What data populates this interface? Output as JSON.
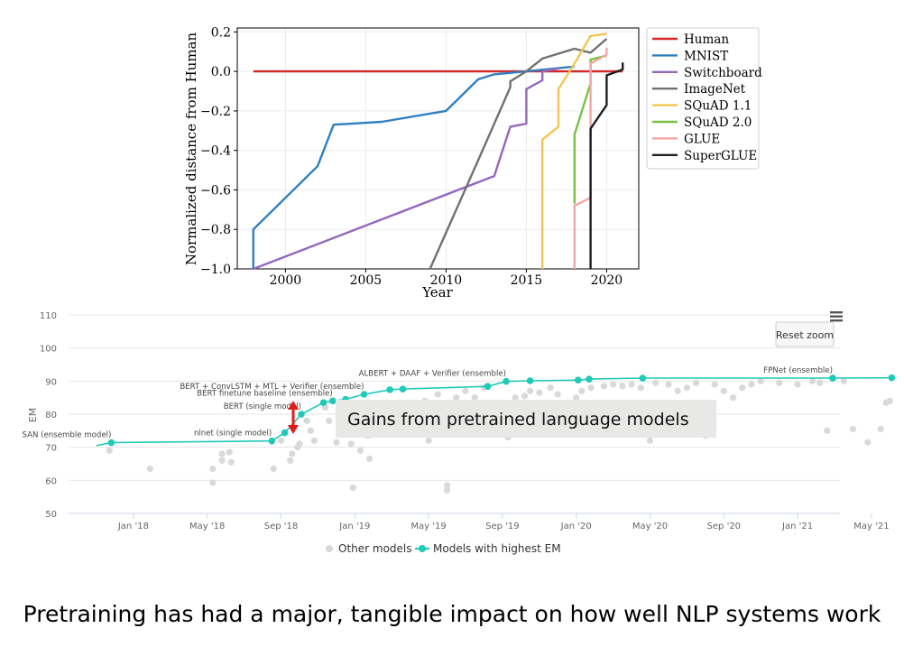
{
  "caption": "Pretraining has had a major, tangible impact on how well NLP systems work",
  "chart_data": [
    {
      "type": "line",
      "xlabel": "Year",
      "ylabel": "Normalized distance from Human",
      "xlim": [
        1997,
        2022
      ],
      "ylim": [
        -1.0,
        0.22
      ],
      "xticks": [
        2000,
        2005,
        2010,
        2015,
        2020
      ],
      "yticks": [
        -1.0,
        -0.8,
        -0.6,
        -0.4,
        -0.2,
        0.0,
        0.2
      ],
      "ytick_labels": [
        "−1.0",
        "−0.8",
        "−0.6",
        "−0.4",
        "−0.2",
        "0.0",
        "0.2"
      ],
      "grid": true,
      "legend_position": "right",
      "series": [
        {
          "name": "Human",
          "color": "#d62728",
          "points": [
            [
              1998,
              0.0
            ],
            [
              2021,
              0.0
            ]
          ]
        },
        {
          "name": "MNIST",
          "color": "#2f7fc1",
          "points": [
            [
              1998,
              -1.0
            ],
            [
              1998,
              -0.8
            ],
            [
              2002,
              -0.48
            ],
            [
              2003,
              -0.27
            ],
            [
              2006,
              -0.255
            ],
            [
              2010,
              -0.2
            ],
            [
              2012,
              -0.04
            ],
            [
              2013,
              -0.015
            ],
            [
              2015,
              0.0
            ],
            [
              2018,
              0.025
            ]
          ]
        },
        {
          "name": "Switchboard",
          "color": "#9467bd",
          "points": [
            [
              1998,
              -1.0
            ],
            [
              2013,
              -0.53
            ],
            [
              2014,
              -0.28
            ],
            [
              2015,
              -0.265
            ],
            [
              2015,
              -0.09
            ],
            [
              2016,
              -0.045
            ],
            [
              2016,
              0.0
            ],
            [
              2017,
              0.015
            ]
          ]
        },
        {
          "name": "ImageNet",
          "color": "#707070",
          "points": [
            [
              2009,
              -1.0
            ],
            [
              2012,
              -0.45
            ],
            [
              2014,
              -0.08
            ],
            [
              2014,
              -0.05
            ],
            [
              2015,
              0.0
            ],
            [
              2016,
              0.065
            ],
            [
              2018,
              0.115
            ],
            [
              2019,
              0.095
            ],
            [
              2020,
              0.165
            ]
          ]
        },
        {
          "name": "SQuAD 1.1",
          "color": "#f5c451",
          "points": [
            [
              2016,
              -1.0
            ],
            [
              2016,
              -0.345
            ],
            [
              2017,
              -0.28
            ],
            [
              2017,
              -0.09
            ],
            [
              2018,
              0.04
            ],
            [
              2019,
              0.18
            ],
            [
              2020,
              0.19
            ]
          ]
        },
        {
          "name": "SQuAD 2.0",
          "color": "#7ac143",
          "points": [
            [
              2018,
              -0.67
            ],
            [
              2018,
              -0.32
            ],
            [
              2019,
              -0.06
            ],
            [
              2019,
              0.06
            ],
            [
              2020,
              0.08
            ]
          ]
        },
        {
          "name": "GLUE",
          "color": "#f4a6a6",
          "points": [
            [
              2018,
              -1.0
            ],
            [
              2018,
              -0.68
            ],
            [
              2019,
              -0.64
            ],
            [
              2019,
              0.04
            ],
            [
              2020,
              0.085
            ],
            [
              2020,
              0.12
            ]
          ]
        },
        {
          "name": "SuperGLUE",
          "color": "#1f1f1f",
          "points": [
            [
              2019,
              -1.0
            ],
            [
              2019,
              -0.29
            ],
            [
              2020,
              -0.17
            ],
            [
              2020,
              -0.02
            ],
            [
              2021,
              0.01
            ],
            [
              2021,
              0.045
            ]
          ]
        }
      ]
    },
    {
      "type": "scatter",
      "ylabel": "EM",
      "ylim": [
        50,
        110
      ],
      "yticks": [
        50,
        60,
        70,
        80,
        90,
        100,
        110
      ],
      "x_unit": "months since Nov 2017",
      "xticks": [
        {
          "t": 2,
          "label": "Jan '18"
        },
        {
          "t": 6,
          "label": "May '18"
        },
        {
          "t": 10,
          "label": "Sep '18"
        },
        {
          "t": 14,
          "label": "Jan '19"
        },
        {
          "t": 18,
          "label": "May '19"
        },
        {
          "t": 22,
          "label": "Sep '19"
        },
        {
          "t": 26,
          "label": "Jan '20"
        },
        {
          "t": 30,
          "label": "May '20"
        },
        {
          "t": 34,
          "label": "Sep '20"
        },
        {
          "t": 38,
          "label": "Jan '21"
        },
        {
          "t": 42,
          "label": "May '21"
        }
      ],
      "legend": [
        "Other models",
        "Models with highest EM"
      ],
      "legend_position": "bottom-center",
      "reset_zoom_label": "Reset zoom",
      "annotation": "Gains from pretrained language models",
      "highest_em_series": {
        "name": "Models with highest EM",
        "color": "#20c9b8",
        "points": [
          [
            0,
            70.5
          ],
          [
            0.8,
            71.4
          ],
          [
            9.5,
            71.9
          ],
          [
            10.2,
            74.4
          ],
          [
            11.1,
            80.0
          ],
          [
            12.3,
            83.5
          ],
          [
            12.8,
            84.0
          ],
          [
            13.5,
            84.5
          ],
          [
            14.5,
            86.0
          ],
          [
            15.9,
            87.4
          ],
          [
            16.6,
            87.6
          ],
          [
            21.2,
            88.4
          ],
          [
            22.2,
            89.9
          ],
          [
            23.5,
            90.1
          ],
          [
            26.1,
            90.3
          ],
          [
            26.7,
            90.6
          ],
          [
            29.6,
            90.9
          ],
          [
            39.9,
            90.9
          ],
          [
            43.1,
            91.0
          ]
        ]
      },
      "labels": [
        {
          "text": "SAN (ensemble model)",
          "x": 0.8,
          "y": 71.4
        },
        {
          "text": "nlnet (single model)",
          "x": 9.5,
          "y": 71.9
        },
        {
          "text": "BERT (single model)",
          "x": 11.1,
          "y": 80.0
        },
        {
          "text": "BERT finetune baseline (ensemble)",
          "x": 12.8,
          "y": 84.0
        },
        {
          "text": "BERT + ConvLSTM + MTL + Verifier (ensemble)",
          "x": 14.5,
          "y": 86.0
        },
        {
          "text": "ALBERT + DAAF + Verifier (ensemble)",
          "x": 22.2,
          "y": 89.9
        },
        {
          "text": "FPNet (ensemble)",
          "x": 39.9,
          "y": 90.9
        }
      ],
      "other_models": {
        "name": "Other models",
        "color": "#d9d9d9",
        "points": [
          [
            0.7,
            69.0
          ],
          [
            2.9,
            63.5
          ],
          [
            6.3,
            59.3
          ],
          [
            6.3,
            63.5
          ],
          [
            6.8,
            68.0
          ],
          [
            6.8,
            66.0
          ],
          [
            7.2,
            68.5
          ],
          [
            7.3,
            65.5
          ],
          [
            9.6,
            63.5
          ],
          [
            10.0,
            72.0
          ],
          [
            10.5,
            66.0
          ],
          [
            10.6,
            68.0
          ],
          [
            10.9,
            70.0
          ],
          [
            11.0,
            71.0
          ],
          [
            11.4,
            78.0
          ],
          [
            11.6,
            75.0
          ],
          [
            11.8,
            72.0
          ],
          [
            12.4,
            82.0
          ],
          [
            12.6,
            78.0
          ],
          [
            13.0,
            71.5
          ],
          [
            13.3,
            78.5
          ],
          [
            13.6,
            75.5
          ],
          [
            13.8,
            71.0
          ],
          [
            13.9,
            57.8
          ],
          [
            14.1,
            82.0
          ],
          [
            14.3,
            69.0
          ],
          [
            14.5,
            75.0
          ],
          [
            14.7,
            73.5
          ],
          [
            14.8,
            66.5
          ],
          [
            15.0,
            80.5
          ],
          [
            15.5,
            79.0
          ],
          [
            15.9,
            82.0
          ],
          [
            16.1,
            77.0
          ],
          [
            16.3,
            80.0
          ],
          [
            17.3,
            81.0
          ],
          [
            17.8,
            84.0
          ],
          [
            18.0,
            72.0
          ],
          [
            18.5,
            86.0
          ],
          [
            18.7,
            80.0
          ],
          [
            19.0,
            58.5
          ],
          [
            19.0,
            57.0
          ],
          [
            19.5,
            85.0
          ],
          [
            20.0,
            87.0
          ],
          [
            20.5,
            85.0
          ],
          [
            21.0,
            88.0
          ],
          [
            22.3,
            73.0
          ],
          [
            22.7,
            85.0
          ],
          [
            23.2,
            85.5
          ],
          [
            23.5,
            87.0
          ],
          [
            24.0,
            86.5
          ],
          [
            24.6,
            88.0
          ],
          [
            25.0,
            86.0
          ],
          [
            26.0,
            85.0
          ],
          [
            26.3,
            87.0
          ],
          [
            26.5,
            80.0
          ],
          [
            26.8,
            88.0
          ],
          [
            27.5,
            88.5
          ],
          [
            28.0,
            89.0
          ],
          [
            28.5,
            88.5
          ],
          [
            29.0,
            89.0
          ],
          [
            29.5,
            88.0
          ],
          [
            30.0,
            72.0
          ],
          [
            30.3,
            89.5
          ],
          [
            31.0,
            89.0
          ],
          [
            31.5,
            87.0
          ],
          [
            32.0,
            88.0
          ],
          [
            32.5,
            89.5
          ],
          [
            33.0,
            73.5
          ],
          [
            33.5,
            89.0
          ],
          [
            34.0,
            87.0
          ],
          [
            34.5,
            85.0
          ],
          [
            35.0,
            88.0
          ],
          [
            35.5,
            89.0
          ],
          [
            36.0,
            90.0
          ],
          [
            37.0,
            89.5
          ],
          [
            38.0,
            89.0
          ],
          [
            38.8,
            90.0
          ],
          [
            39.2,
            89.5
          ],
          [
            39.6,
            75.0
          ],
          [
            40.5,
            90.0
          ],
          [
            41.0,
            75.5
          ],
          [
            41.8,
            71.5
          ],
          [
            42.5,
            75.5
          ],
          [
            42.8,
            83.5
          ],
          [
            43.0,
            84.0
          ]
        ]
      }
    }
  ]
}
